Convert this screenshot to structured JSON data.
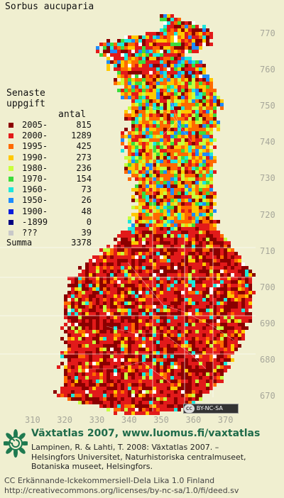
{
  "species": "Sorbus aucuparia",
  "legend": {
    "title_line1": "Senaste",
    "title_line2": "uppgift",
    "count_header": "antal",
    "rows": [
      {
        "label": "2005-",
        "count": "815",
        "color": "#8b0000"
      },
      {
        "label": "2000-",
        "count": "1289",
        "color": "#e21a1a"
      },
      {
        "label": "1995-",
        "count": "425",
        "color": "#ff6a00"
      },
      {
        "label": "1990-",
        "count": "273",
        "color": "#ffc800"
      },
      {
        "label": "1980-",
        "count": "236",
        "color": "#c8ff3c"
      },
      {
        "label": "1970-",
        "count": "154",
        "color": "#3cdc3c"
      },
      {
        "label": "1960-",
        "count": "73",
        "color": "#1ee6dc"
      },
      {
        "label": "1950-",
        "count": "26",
        "color": "#1e8cff"
      },
      {
        "label": "1900-",
        "count": "48",
        "color": "#0a1edc"
      },
      {
        "label": "-1899",
        "count": "0",
        "color": "#000080"
      },
      {
        "label": "???",
        "count": "39",
        "color": "#c8c8c8"
      }
    ],
    "sum_label": "Summa",
    "sum_count": "3378"
  },
  "axes": {
    "y_ticks": [
      "770",
      "760",
      "750",
      "740",
      "730",
      "720",
      "710",
      "700",
      "690",
      "680",
      "670"
    ],
    "x_ticks": [
      "310",
      "320",
      "330",
      "340",
      "350",
      "360",
      "370"
    ]
  },
  "license_badge": {
    "cc": "cc",
    "text": "BY-NC-SA"
  },
  "footer": {
    "title": "Växtatlas 2007, www.luomus.fi/vaxtatlas",
    "citation_lines": [
      "Lampinen, R. & Lahti, T. 2008: Växtatlas 2007. –",
      "Helsingfors Universitet, Naturhistoriska centralmuseet,",
      "Botaniska museet, Helsingfors."
    ],
    "license_lines": [
      "CC Erkännande-Ickekommersiell-Dela Lika 1.0 Finland",
      "http://creativecommons.org/licenses/by-nc-sa/1.0/fi/deed.sv"
    ]
  },
  "colors": {
    "background": "#f0efd0",
    "footer_title": "#1f6b4a",
    "grid": "#ffffff",
    "tick_labels": "#a7a79a"
  }
}
